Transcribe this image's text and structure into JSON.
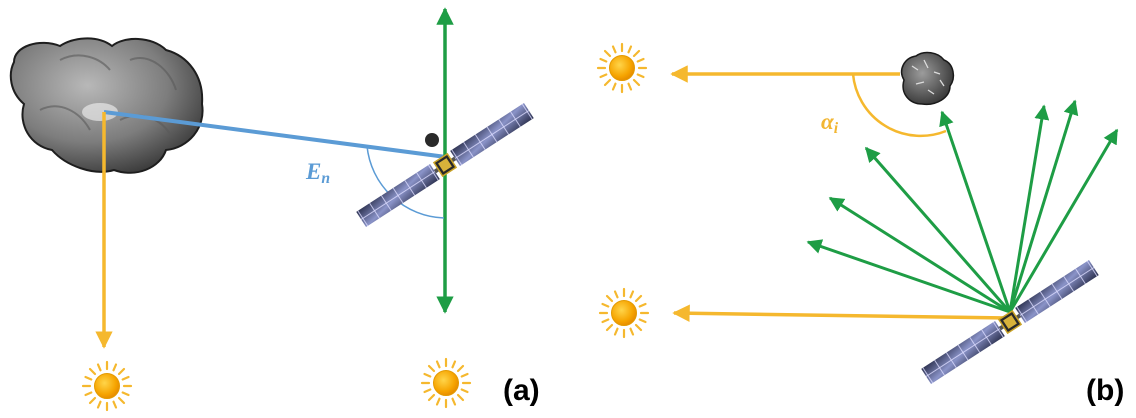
{
  "panels": [
    {
      "id": "a",
      "label": "(a)"
    },
    {
      "id": "b",
      "label": "(b)"
    }
  ],
  "angles": {
    "en": {
      "symbol": "E",
      "sub": "n",
      "color": "#5b9bd5"
    },
    "ai": {
      "symbol": "α",
      "sub": "i",
      "color": "#f2b632"
    }
  },
  "colors": {
    "sun_ray": "#f5b82e",
    "antenna_axis": "#1e9d45",
    "line_of_sight": "#5b9bd5",
    "sun_core": "#f5a300",
    "comet": "#8a8a8a",
    "solar_panel": "#3a3f5c"
  },
  "icons": [
    "sun-icon",
    "comet-nucleus",
    "spacecraft-icon"
  ]
}
